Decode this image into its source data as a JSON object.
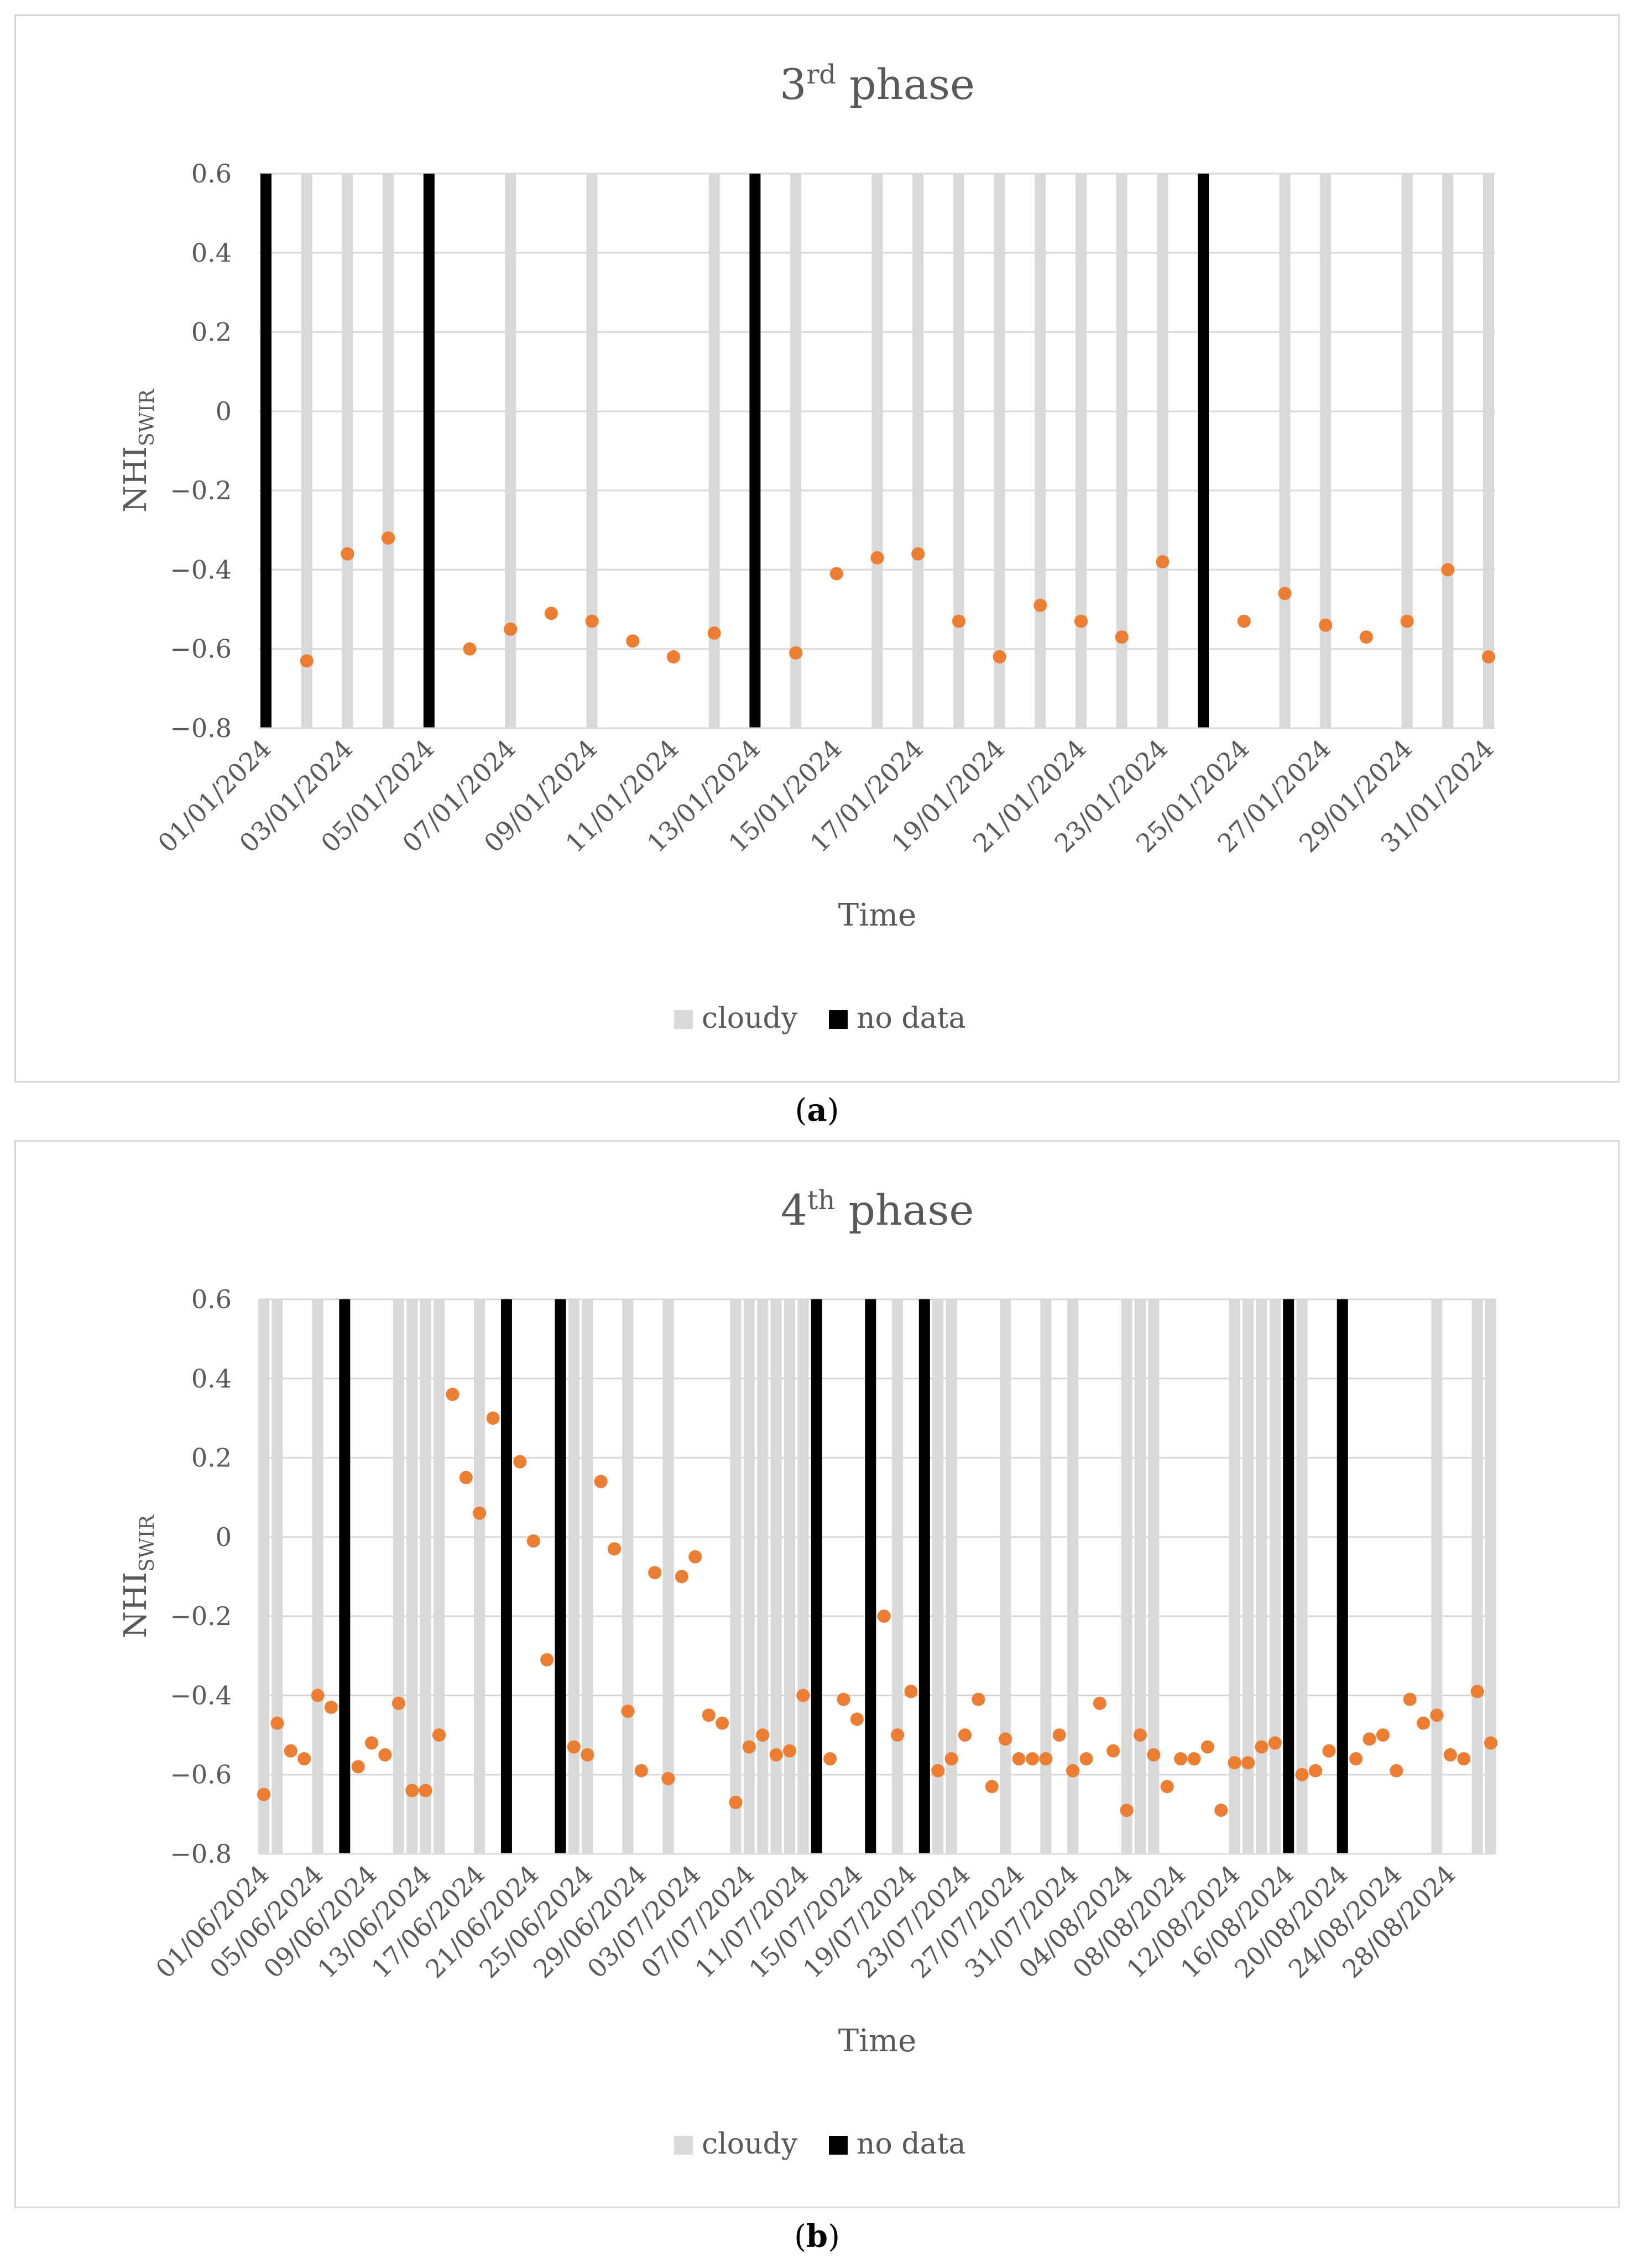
{
  "figure": {
    "caption_a": "a",
    "caption_b": "b"
  },
  "chart_data": [
    {
      "type": "scatter",
      "title_main": "3",
      "title_sup": "rd",
      "title_rest": " phase",
      "xlabel": "Time",
      "ylabel_main": "NHI",
      "ylabel_sub": "SWIR",
      "ylim": [
        -0.8,
        0.6
      ],
      "yticks": [
        0.6,
        0.4,
        0.2,
        0,
        -0.2,
        -0.4,
        -0.6,
        -0.8
      ],
      "ytick_labels": [
        "0.6",
        "0.4",
        "0.2",
        "0",
        "−0.2",
        "−0.4",
        "−0.6",
        "−0.8"
      ],
      "x_start": "01/01/2024",
      "n_days": 31,
      "xtick_labels": [
        "01/01/2024",
        "03/01/2024",
        "05/01/2024",
        "07/01/2024",
        "09/01/2024",
        "11/01/2024",
        "13/01/2024",
        "15/01/2024",
        "17/01/2024",
        "19/01/2024",
        "21/01/2024",
        "23/01/2024",
        "25/01/2024",
        "27/01/2024",
        "29/01/2024",
        "31/01/2024"
      ],
      "xtick_days": [
        0,
        2,
        4,
        6,
        8,
        10,
        12,
        14,
        16,
        18,
        20,
        22,
        24,
        26,
        28,
        30
      ],
      "cloudy_days": [
        1,
        2,
        3,
        6,
        8,
        11,
        13,
        15,
        16,
        17,
        18,
        19,
        20,
        21,
        22,
        23,
        25,
        26,
        28,
        29,
        30
      ],
      "nodata_days": [
        0,
        4,
        12,
        23
      ],
      "points": [
        {
          "day": 1,
          "value": -0.63
        },
        {
          "day": 2,
          "value": -0.36
        },
        {
          "day": 3,
          "value": -0.32
        },
        {
          "day": 5,
          "value": -0.6
        },
        {
          "day": 6,
          "value": -0.55
        },
        {
          "day": 7,
          "value": -0.51
        },
        {
          "day": 8,
          "value": -0.53
        },
        {
          "day": 9,
          "value": -0.58
        },
        {
          "day": 10,
          "value": -0.62
        },
        {
          "day": 11,
          "value": -0.56
        },
        {
          "day": 13,
          "value": -0.61
        },
        {
          "day": 14,
          "value": -0.41
        },
        {
          "day": 15,
          "value": -0.37
        },
        {
          "day": 16,
          "value": -0.36
        },
        {
          "day": 17,
          "value": -0.53
        },
        {
          "day": 18,
          "value": -0.62
        },
        {
          "day": 19,
          "value": -0.49
        },
        {
          "day": 20,
          "value": -0.53
        },
        {
          "day": 21,
          "value": -0.57
        },
        {
          "day": 22,
          "value": -0.38
        },
        {
          "day": 24,
          "value": -0.53
        },
        {
          "day": 25,
          "value": -0.46
        },
        {
          "day": 26,
          "value": -0.54
        },
        {
          "day": 27,
          "value": -0.57
        },
        {
          "day": 28,
          "value": -0.53
        },
        {
          "day": 29,
          "value": -0.4
        },
        {
          "day": 30,
          "value": -0.62
        }
      ],
      "legend": [
        {
          "label": "cloudy",
          "color": "#d9d9d9"
        },
        {
          "label": "no data",
          "color": "#000000"
        }
      ],
      "marker_color": "#ed7d31"
    },
    {
      "type": "scatter",
      "title_main": "4",
      "title_sup": "th",
      "title_rest": " phase",
      "xlabel": "Time",
      "ylabel_main": "NHI",
      "ylabel_sub": "SWIR",
      "ylim": [
        -0.8,
        0.6
      ],
      "yticks": [
        0.6,
        0.4,
        0.2,
        0,
        -0.2,
        -0.4,
        -0.6,
        -0.8
      ],
      "ytick_labels": [
        "0.6",
        "0.4",
        "0.2",
        "0",
        "−0.2",
        "−0.4",
        "−0.6",
        "−0.8"
      ],
      "x_start": "01/06/2024",
      "n_days": 92,
      "xtick_labels": [
        "01/06/2024",
        "05/06/2024",
        "09/06/2024",
        "13/06/2024",
        "17/06/2024",
        "21/06/2024",
        "25/06/2024",
        "29/06/2024",
        "03/07/2024",
        "07/07/2024",
        "11/07/2024",
        "15/07/2024",
        "19/07/2024",
        "23/07/2024",
        "27/07/2024",
        "31/07/2024",
        "04/08/2024",
        "08/08/2024",
        "12/08/2024",
        "16/08/2024",
        "20/08/2024",
        "24/08/2024",
        "28/08/2024"
      ],
      "xtick_days": [
        0,
        4,
        8,
        12,
        16,
        20,
        24,
        28,
        32,
        36,
        40,
        44,
        48,
        52,
        56,
        60,
        64,
        68,
        72,
        76,
        80,
        84,
        88
      ],
      "cloudy_days": [
        0,
        1,
        4,
        10,
        11,
        12,
        13,
        16,
        23,
        24,
        27,
        30,
        35,
        36,
        37,
        38,
        39,
        40,
        41,
        45,
        47,
        50,
        51,
        55,
        58,
        60,
        64,
        65,
        66,
        72,
        73,
        74,
        75,
        76,
        77,
        87,
        90,
        91
      ],
      "nodata_days": [
        6,
        18,
        22,
        41,
        45,
        49,
        76,
        80
      ],
      "points": [
        {
          "day": 0,
          "value": -0.65
        },
        {
          "day": 1,
          "value": -0.47
        },
        {
          "day": 2,
          "value": -0.54
        },
        {
          "day": 3,
          "value": -0.56
        },
        {
          "day": 4,
          "value": -0.4
        },
        {
          "day": 5,
          "value": -0.43
        },
        {
          "day": 7,
          "value": -0.58
        },
        {
          "day": 8,
          "value": -0.52
        },
        {
          "day": 9,
          "value": -0.55
        },
        {
          "day": 10,
          "value": -0.42
        },
        {
          "day": 11,
          "value": -0.64
        },
        {
          "day": 12,
          "value": -0.64
        },
        {
          "day": 13,
          "value": -0.5
        },
        {
          "day": 14,
          "value": 0.36
        },
        {
          "day": 15,
          "value": 0.15
        },
        {
          "day": 16,
          "value": 0.06
        },
        {
          "day": 17,
          "value": 0.3
        },
        {
          "day": 19,
          "value": 0.19
        },
        {
          "day": 20,
          "value": -0.01
        },
        {
          "day": 21,
          "value": -0.31
        },
        {
          "day": 23,
          "value": -0.53
        },
        {
          "day": 24,
          "value": -0.55
        },
        {
          "day": 25,
          "value": 0.14
        },
        {
          "day": 26,
          "value": -0.03
        },
        {
          "day": 27,
          "value": -0.44
        },
        {
          "day": 28,
          "value": -0.59
        },
        {
          "day": 29,
          "value": -0.09
        },
        {
          "day": 30,
          "value": -0.61
        },
        {
          "day": 31,
          "value": -0.1
        },
        {
          "day": 32,
          "value": -0.05
        },
        {
          "day": 33,
          "value": -0.45
        },
        {
          "day": 34,
          "value": -0.47
        },
        {
          "day": 35,
          "value": -0.67
        },
        {
          "day": 36,
          "value": -0.53
        },
        {
          "day": 37,
          "value": -0.5
        },
        {
          "day": 38,
          "value": -0.55
        },
        {
          "day": 39,
          "value": -0.54
        },
        {
          "day": 40,
          "value": -0.4
        },
        {
          "day": 42,
          "value": -0.56
        },
        {
          "day": 43,
          "value": -0.41
        },
        {
          "day": 44,
          "value": -0.46
        },
        {
          "day": 46,
          "value": -0.2
        },
        {
          "day": 47,
          "value": -0.5
        },
        {
          "day": 48,
          "value": -0.39
        },
        {
          "day": 50,
          "value": -0.59
        },
        {
          "day": 51,
          "value": -0.56
        },
        {
          "day": 52,
          "value": -0.5
        },
        {
          "day": 53,
          "value": -0.41
        },
        {
          "day": 54,
          "value": -0.63
        },
        {
          "day": 55,
          "value": -0.51
        },
        {
          "day": 56,
          "value": -0.56
        },
        {
          "day": 57,
          "value": -0.56
        },
        {
          "day": 58,
          "value": -0.56
        },
        {
          "day": 59,
          "value": -0.5
        },
        {
          "day": 60,
          "value": -0.59
        },
        {
          "day": 61,
          "value": -0.56
        },
        {
          "day": 62,
          "value": -0.42
        },
        {
          "day": 63,
          "value": -0.54
        },
        {
          "day": 64,
          "value": -0.69
        },
        {
          "day": 65,
          "value": -0.5
        },
        {
          "day": 66,
          "value": -0.55
        },
        {
          "day": 67,
          "value": -0.63
        },
        {
          "day": 68,
          "value": -0.56
        },
        {
          "day": 69,
          "value": -0.56
        },
        {
          "day": 70,
          "value": -0.53
        },
        {
          "day": 71,
          "value": -0.69
        },
        {
          "day": 72,
          "value": -0.57
        },
        {
          "day": 73,
          "value": -0.57
        },
        {
          "day": 74,
          "value": -0.53
        },
        {
          "day": 75,
          "value": -0.52
        },
        {
          "day": 77,
          "value": -0.6
        },
        {
          "day": 78,
          "value": -0.59
        },
        {
          "day": 79,
          "value": -0.54
        },
        {
          "day": 81,
          "value": -0.56
        },
        {
          "day": 82,
          "value": -0.51
        },
        {
          "day": 83,
          "value": -0.5
        },
        {
          "day": 84,
          "value": -0.59
        },
        {
          "day": 85,
          "value": -0.41
        },
        {
          "day": 86,
          "value": -0.47
        },
        {
          "day": 87,
          "value": -0.45
        },
        {
          "day": 88,
          "value": -0.55
        },
        {
          "day": 89,
          "value": -0.56
        },
        {
          "day": 90,
          "value": -0.39
        },
        {
          "day": 91,
          "value": -0.52
        }
      ],
      "legend": [
        {
          "label": "cloudy",
          "color": "#d9d9d9"
        },
        {
          "label": "no data",
          "color": "#000000"
        }
      ],
      "marker_color": "#ed7d31"
    }
  ]
}
